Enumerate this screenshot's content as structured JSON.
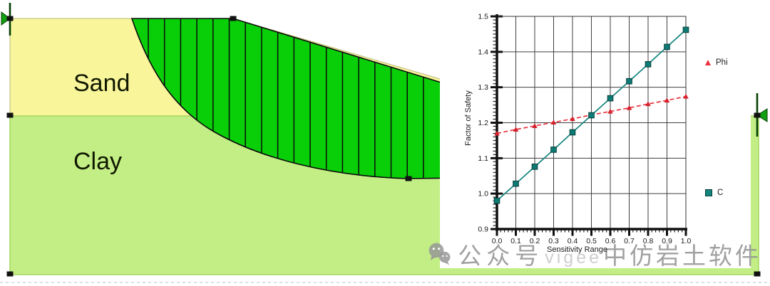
{
  "scene": {
    "sand_label": "Sand",
    "clay_label": "Clay",
    "colors": {
      "sand_fill": "#f8f59b",
      "clay_fill": "#c3ee85",
      "slip_mass_fill": "#09cf09",
      "marker": "#111111",
      "flag_green": "#11a011"
    }
  },
  "chart_data": {
    "type": "line",
    "title": "",
    "xlabel": "Sensitivity Range",
    "ylabel": "Factor of Safety",
    "xlim": [
      0.0,
      1.0
    ],
    "ylim": [
      0.9,
      1.5
    ],
    "grid": true,
    "legend_position": "right",
    "x_tick_labels": [
      "0.0",
      "0.1",
      "0.2",
      "0.3",
      "0.4",
      "0.5",
      "0.6",
      "0.7",
      "0.8",
      "0.9",
      "1.0"
    ],
    "y_tick_labels": [
      "0.9",
      "1.0",
      "1.1",
      "1.2",
      "1.3",
      "1.4",
      "1.5"
    ],
    "x": [
      0.0,
      0.1,
      0.2,
      0.3,
      0.4,
      0.5,
      0.6,
      0.7,
      0.8,
      0.9,
      1.0
    ],
    "series": [
      {
        "name": "Phi",
        "color": "#e8333e",
        "marker": "triangle",
        "line_style": "dashed",
        "values": [
          1.17,
          1.181,
          1.191,
          1.201,
          1.211,
          1.222,
          1.232,
          1.242,
          1.253,
          1.263,
          1.274
        ]
      },
      {
        "name": "C",
        "color": "#13847e",
        "marker": "square",
        "line_style": "solid",
        "values": [
          0.98,
          1.028,
          1.076,
          1.124,
          1.173,
          1.221,
          1.269,
          1.317,
          1.365,
          1.414,
          1.462
        ]
      }
    ]
  },
  "watermark": {
    "icon": "wechat-icon",
    "prefix": "公众号",
    "mid": "vigee",
    "suffix": "中仿岩土软件"
  }
}
